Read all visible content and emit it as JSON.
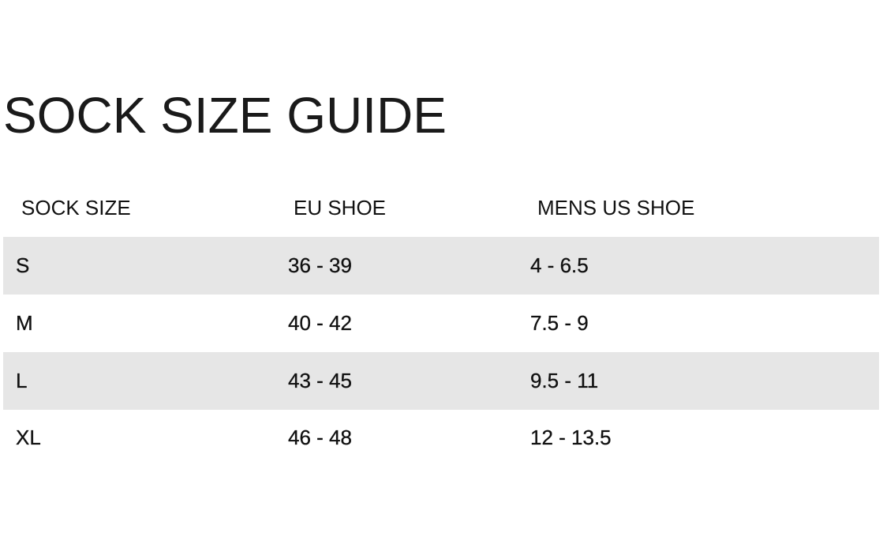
{
  "title": "SOCK SIZE GUIDE",
  "table": {
    "headers": [
      "SOCK SIZE",
      "EU SHOE",
      "MENS US SHOE"
    ],
    "rows": [
      [
        "S",
        "36 - 39",
        "4 - 6.5"
      ],
      [
        "M",
        "40 - 42",
        "7.5 - 9"
      ],
      [
        "L",
        "43 - 45",
        "9.5 - 11"
      ],
      [
        "XL",
        "46 - 48",
        "12 - 13.5"
      ]
    ],
    "stripe_color": "#e6e6e6"
  }
}
